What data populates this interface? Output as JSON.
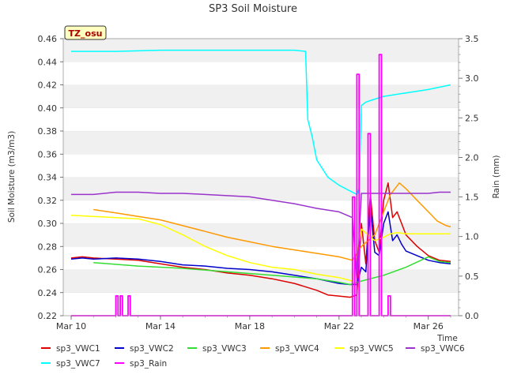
{
  "chart_data": {
    "type": "line",
    "title": "SP3 Soil Moisture",
    "xlabel": "Time",
    "ylabel": "Soil Moisture (m3/m3)",
    "y2label": "Rain (mm)",
    "badge": "TZ_osu",
    "xlim": [
      0,
      17
    ],
    "ylim": [
      0.22,
      0.46
    ],
    "y2lim": [
      0.0,
      3.5
    ],
    "x_ticks": [
      {
        "x": 0,
        "label": "Mar 10"
      },
      {
        "x": 4,
        "label": "Mar 14"
      },
      {
        "x": 8,
        "label": "Mar 18"
      },
      {
        "x": 12,
        "label": "Mar 22"
      },
      {
        "x": 16,
        "label": "Mar 26"
      }
    ],
    "y_ticks": [
      "0.22",
      "0.24",
      "0.26",
      "0.28",
      "0.30",
      "0.32",
      "0.34",
      "0.36",
      "0.38",
      "0.40",
      "0.42",
      "0.44",
      "0.46"
    ],
    "y_tick_values": [
      0.22,
      0.24,
      0.26,
      0.28,
      0.3,
      0.32,
      0.34,
      0.36,
      0.38,
      0.4,
      0.42,
      0.44,
      0.46
    ],
    "y2_ticks": [
      "0.0",
      "0.5",
      "1.0",
      "1.5",
      "2.0",
      "2.5",
      "3.0",
      "3.5"
    ],
    "y2_tick_values": [
      0.0,
      0.5,
      1.0,
      1.5,
      2.0,
      2.5,
      3.0,
      3.5
    ],
    "grid": true,
    "legend_position": "bottom",
    "series": [
      {
        "name": "sp3_VWC1",
        "color": "#dd0000",
        "axis": "left",
        "x": [
          0.0,
          0.5,
          1.0,
          2.0,
          3.0,
          4.0,
          5.0,
          6.0,
          7.0,
          8.0,
          9.0,
          10.0,
          11.0,
          11.5,
          12.0,
          12.5,
          12.8,
          13.0,
          13.2,
          13.4,
          13.6,
          13.8,
          14.0,
          14.2,
          14.4,
          14.6,
          14.8,
          15.0,
          15.5,
          16.0,
          16.5,
          17.0
        ],
        "y": [
          0.27,
          0.271,
          0.27,
          0.269,
          0.268,
          0.265,
          0.262,
          0.26,
          0.257,
          0.255,
          0.252,
          0.248,
          0.242,
          0.238,
          0.237,
          0.236,
          0.238,
          0.3,
          0.265,
          0.325,
          0.285,
          0.275,
          0.32,
          0.335,
          0.305,
          0.31,
          0.3,
          0.29,
          0.28,
          0.272,
          0.268,
          0.267
        ]
      },
      {
        "name": "sp3_VWC2",
        "color": "#0000cc",
        "axis": "left",
        "x": [
          0.0,
          0.5,
          1.0,
          2.0,
          3.0,
          4.0,
          5.0,
          6.0,
          7.0,
          8.0,
          9.0,
          10.0,
          11.0,
          11.5,
          12.0,
          12.5,
          12.8,
          13.0,
          13.2,
          13.4,
          13.6,
          13.8,
          14.0,
          14.2,
          14.4,
          14.6,
          14.8,
          15.0,
          15.5,
          16.0,
          16.5,
          17.0
        ],
        "y": [
          0.269,
          0.27,
          0.269,
          0.27,
          0.269,
          0.267,
          0.264,
          0.263,
          0.261,
          0.26,
          0.258,
          0.255,
          0.252,
          0.25,
          0.248,
          0.247,
          0.247,
          0.262,
          0.258,
          0.315,
          0.275,
          0.272,
          0.3,
          0.31,
          0.285,
          0.29,
          0.282,
          0.276,
          0.272,
          0.268,
          0.266,
          0.265
        ]
      },
      {
        "name": "sp3_VWC3",
        "color": "#33dd33",
        "axis": "left",
        "x": [
          1.0,
          3.0,
          5.0,
          7.0,
          9.0,
          11.0,
          12.0,
          12.5,
          13.0,
          14.0,
          15.0,
          16.0,
          16.5,
          17.0
        ],
        "y": [
          0.266,
          0.263,
          0.261,
          0.258,
          0.255,
          0.252,
          0.249,
          0.247,
          0.25,
          0.255,
          0.262,
          0.271,
          0.267,
          0.266
        ]
      },
      {
        "name": "sp3_VWC4",
        "color": "#ff9900",
        "axis": "left",
        "x": [
          1.0,
          2.0,
          3.0,
          4.0,
          5.0,
          6.0,
          7.0,
          8.0,
          9.0,
          10.0,
          11.0,
          12.0,
          12.6,
          13.0,
          13.3,
          13.6,
          14.0,
          14.3,
          14.7,
          15.0,
          15.5,
          16.0,
          16.4,
          16.8,
          17.0
        ],
        "y": [
          0.312,
          0.309,
          0.306,
          0.303,
          0.298,
          0.293,
          0.288,
          0.284,
          0.28,
          0.277,
          0.274,
          0.271,
          0.268,
          0.28,
          0.285,
          0.29,
          0.31,
          0.325,
          0.335,
          0.33,
          0.32,
          0.31,
          0.302,
          0.298,
          0.297
        ]
      },
      {
        "name": "sp3_VWC5",
        "color": "#ffff00",
        "axis": "left",
        "x": [
          0.0,
          1.0,
          2.0,
          3.0,
          4.0,
          5.0,
          6.0,
          7.0,
          8.0,
          9.0,
          10.0,
          11.0,
          12.0,
          12.6,
          13.0,
          13.3,
          13.6,
          14.0,
          14.3,
          14.6,
          15.0,
          15.5,
          16.0,
          16.5,
          17.0
        ],
        "y": [
          0.307,
          0.306,
          0.305,
          0.304,
          0.299,
          0.29,
          0.28,
          0.272,
          0.266,
          0.262,
          0.26,
          0.256,
          0.253,
          0.25,
          0.295,
          0.29,
          0.285,
          0.288,
          0.291,
          0.292,
          0.291,
          0.291,
          0.291,
          0.291,
          0.291
        ]
      },
      {
        "name": "sp3_VWC6",
        "color": "#9933cc",
        "axis": "left",
        "x": [
          0.0,
          1.0,
          2.0,
          3.0,
          4.0,
          5.0,
          6.0,
          7.0,
          8.0,
          9.0,
          10.0,
          11.0,
          12.0,
          12.6,
          12.8,
          13.0,
          13.5,
          14.0,
          15.0,
          16.0,
          16.5,
          17.0
        ],
        "y": [
          0.325,
          0.325,
          0.327,
          0.327,
          0.326,
          0.326,
          0.325,
          0.324,
          0.323,
          0.32,
          0.317,
          0.313,
          0.31,
          0.305,
          0.25,
          0.326,
          0.326,
          0.326,
          0.326,
          0.326,
          0.327,
          0.327
        ]
      },
      {
        "name": "sp3_VWC7",
        "color": "#00ffff",
        "axis": "left",
        "x": [
          0.0,
          2.0,
          4.0,
          6.0,
          8.0,
          9.0,
          10.0,
          10.5,
          10.6,
          10.8,
          11.0,
          11.5,
          12.0,
          12.5,
          12.8,
          12.9,
          13.0,
          13.2,
          13.5,
          14.0,
          15.0,
          16.0,
          17.0
        ],
        "y": [
          0.449,
          0.449,
          0.45,
          0.45,
          0.45,
          0.45,
          0.45,
          0.449,
          0.39,
          0.375,
          0.355,
          0.34,
          0.333,
          0.328,
          0.325,
          0.33,
          0.402,
          0.405,
          0.407,
          0.41,
          0.413,
          0.416,
          0.42
        ]
      },
      {
        "name": "sp3_Rain",
        "color": "#ff00ff",
        "axis": "right",
        "x": [
          0.0,
          2.0,
          2.0,
          2.1,
          2.1,
          2.2,
          2.2,
          2.3,
          2.3,
          2.55,
          2.55,
          2.65,
          2.65,
          12.6,
          12.6,
          12.7,
          12.7,
          12.8,
          12.8,
          12.9,
          12.9,
          13.0,
          13.0,
          13.3,
          13.3,
          13.4,
          13.4,
          13.8,
          13.8,
          13.9,
          13.9,
          14.2,
          14.2,
          14.3,
          14.3,
          17.0
        ],
        "y": [
          0.0,
          0.0,
          0.25,
          0.25,
          0.0,
          0.0,
          0.25,
          0.25,
          0.0,
          0.0,
          0.25,
          0.25,
          0.0,
          0.0,
          1.5,
          1.5,
          0.0,
          0.0,
          3.05,
          3.05,
          0.0,
          0.0,
          0.0,
          0.0,
          2.3,
          2.3,
          0.0,
          0.0,
          3.3,
          3.3,
          0.0,
          0.0,
          0.25,
          0.25,
          0.0,
          0.0
        ]
      }
    ]
  }
}
